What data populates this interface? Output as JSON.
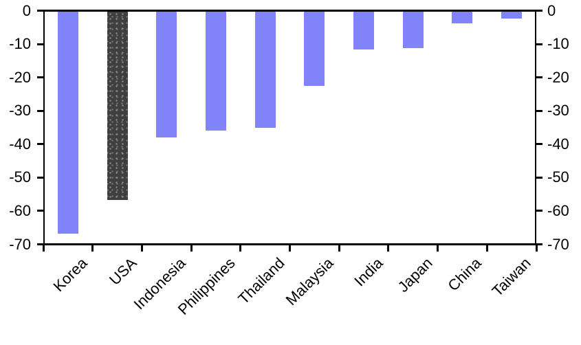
{
  "chart_data": {
    "type": "bar",
    "categories": [
      "Korea",
      "USA",
      "Indonesia",
      "Philippines",
      "Thailand",
      "Malaysia",
      "India",
      "Japan",
      "China",
      "Taiwan"
    ],
    "values": [
      -67,
      -57,
      -38,
      -36,
      -35,
      -22.5,
      -11.5,
      -11,
      -3.5,
      -2
    ],
    "highlighted_category": "USA",
    "ylim": [
      -70,
      0
    ],
    "ytick_values": [
      0,
      -10,
      -20,
      -30,
      -40,
      -50,
      -60,
      -70
    ],
    "ytick_labels_left": [
      "0",
      "-10",
      "-20",
      "-30",
      "-40",
      "-50",
      "-60",
      "-70"
    ],
    "ytick_labels_right": [
      "0",
      "-10",
      "-20",
      "-30",
      "-40",
      "-50",
      "-60",
      "-70"
    ],
    "grid": false,
    "legend_position": "none",
    "colors": {
      "bar": "#8183f9",
      "bar_highlight": "#3f3f3f",
      "axis": "#000000",
      "text": "#000000",
      "background": "#ffffff"
    }
  }
}
